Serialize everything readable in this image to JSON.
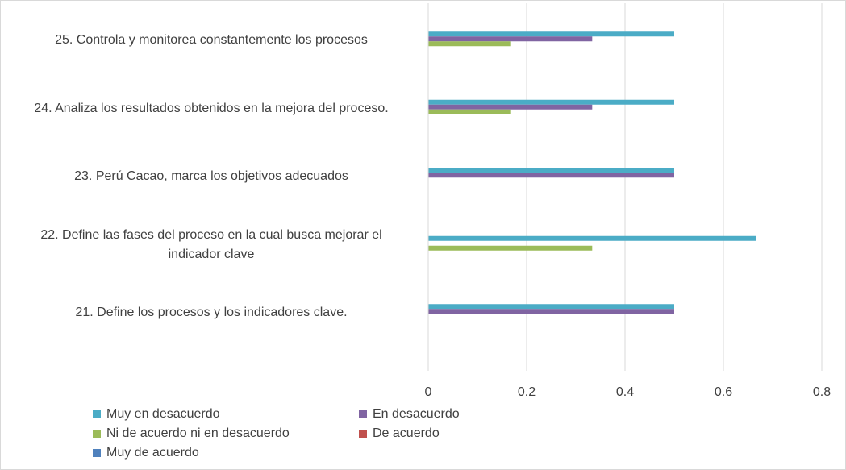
{
  "chart_data": {
    "type": "barh",
    "categories": [
      "25. Controla y monitorea constantemente los procesos",
      "24. Analiza los resultados obtenidos en la mejora del proceso.",
      "23. Perú Cacao, marca los objetivos adecuados",
      "22. Define las fases del proceso en la cual busca mejorar el indicador clave",
      "21. Define los procesos y los indicadores clave."
    ],
    "series": [
      {
        "name": "Muy en desacuerdo",
        "color": "#4bacc6",
        "values": [
          0.5,
          0.5,
          0.5,
          0.6667,
          0.5
        ]
      },
      {
        "name": "En desacuerdo",
        "color": "#8064a2",
        "values": [
          0.3333,
          0.3333,
          0.5,
          0,
          0.5
        ]
      },
      {
        "name": "Ni de acuerdo ni en desacuerdo",
        "color": "#9bbb59",
        "values": [
          0.1667,
          0.1667,
          0,
          0.3333,
          0
        ]
      },
      {
        "name": "De acuerdo",
        "color": "#c0504d",
        "values": [
          0,
          0,
          0,
          0,
          0
        ]
      },
      {
        "name": "Muy de acuerdo",
        "color": "#4f81bd",
        "values": [
          0,
          0,
          0,
          0,
          0
        ]
      }
    ],
    "xlim": [
      0,
      0.8
    ],
    "xticks": [
      0,
      0.2,
      0.4,
      0.6,
      0.8
    ],
    "grid": true,
    "legend": "bottom"
  }
}
